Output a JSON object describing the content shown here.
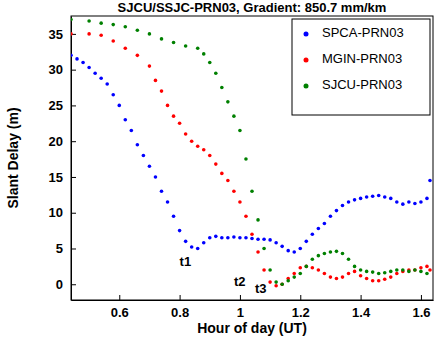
{
  "chart_data": {
    "type": "scatter",
    "title": "SJCU/SSJC-PRN03, Gradient: 850.7 mm/km",
    "x_label": "Hour of day (UT)",
    "y_label": "Slant Delay (m)",
    "xlim": [
      0.44,
      1.64
    ],
    "ylim": [
      -2.2,
      37.5
    ],
    "xticks": [
      0.6,
      0.8,
      1,
      1.2,
      1.4,
      1.6
    ],
    "yticks": [
      0,
      5,
      10,
      15,
      20,
      25,
      30,
      35
    ],
    "grid": false,
    "legend": "upper right",
    "marker": "dot",
    "annotations": [
      {
        "text": "t1",
        "x": 0.8,
        "y": 3
      },
      {
        "text": "t2",
        "x": 0.98,
        "y": 0.3
      },
      {
        "text": "t3",
        "x": 1.05,
        "y": -0.8
      }
    ],
    "series": [
      {
        "name": "SPCA-PRN03",
        "color": "#0000ff",
        "x": [
          0.44,
          0.46,
          0.48,
          0.5,
          0.52,
          0.54,
          0.56,
          0.58,
          0.6,
          0.62,
          0.64,
          0.66,
          0.68,
          0.7,
          0.72,
          0.74,
          0.76,
          0.78,
          0.8,
          0.82,
          0.84,
          0.86,
          0.88,
          0.9,
          0.92,
          0.94,
          0.96,
          0.98,
          1.0,
          1.02,
          1.04,
          1.06,
          1.08,
          1.1,
          1.12,
          1.14,
          1.16,
          1.18,
          1.2,
          1.22,
          1.24,
          1.26,
          1.28,
          1.3,
          1.32,
          1.34,
          1.36,
          1.38,
          1.4,
          1.42,
          1.44,
          1.46,
          1.48,
          1.5,
          1.52,
          1.54,
          1.56,
          1.58,
          1.6,
          1.62,
          1.63
        ],
        "values": [
          32,
          31.5,
          31,
          30.3,
          29.5,
          28.8,
          28,
          26.5,
          25,
          23,
          21.5,
          19.5,
          18,
          16.5,
          15,
          13,
          11.5,
          9.5,
          7.5,
          6,
          5.2,
          5,
          5.8,
          6.5,
          6.7,
          6.5,
          6.5,
          6.6,
          6.5,
          6.5,
          6.4,
          6.3,
          6.3,
          6.2,
          5.8,
          5.3,
          4.7,
          4.5,
          5,
          6,
          7,
          7.8,
          8.5,
          9.5,
          10.3,
          11,
          11.5,
          11.8,
          12,
          12.2,
          12.3,
          12.4,
          12.2,
          12,
          11.5,
          11.2,
          11.5,
          11.3,
          11.5,
          12,
          14.5
        ]
      },
      {
        "name": "MGIN-PRN03",
        "color": "#ff0000",
        "x": [
          0.44,
          0.5,
          0.54,
          0.58,
          0.62,
          0.66,
          0.7,
          0.72,
          0.74,
          0.76,
          0.78,
          0.8,
          0.82,
          0.84,
          0.86,
          0.88,
          0.9,
          0.92,
          0.94,
          0.96,
          0.98,
          1.0,
          1.02,
          1.04,
          1.06,
          1.08,
          1.1,
          1.12,
          1.14,
          1.16,
          1.18,
          1.2,
          1.22,
          1.24,
          1.26,
          1.28,
          1.3,
          1.32,
          1.34,
          1.36,
          1.38,
          1.4,
          1.42,
          1.44,
          1.46,
          1.48,
          1.5,
          1.52,
          1.54,
          1.56,
          1.58,
          1.6,
          1.62,
          1.63
        ],
        "values": [
          35,
          35,
          34.8,
          34,
          33,
          32,
          30.5,
          28.5,
          27,
          25,
          23.5,
          22.5,
          21,
          20,
          19.3,
          18.8,
          18,
          16.8,
          15.5,
          14.5,
          13,
          11.5,
          9.5,
          7,
          4.5,
          2,
          0.3,
          -0.2,
          0,
          0.8,
          1.5,
          2.3,
          2.5,
          2.3,
          2,
          1.5,
          1,
          0.8,
          1,
          1.5,
          1.8,
          1.2,
          0.8,
          0.5,
          0.5,
          0.7,
          1,
          1.5,
          1.8,
          2,
          2,
          2.3,
          2.5,
          2
        ]
      },
      {
        "name": "SJCU-PRN03",
        "color": "#008000",
        "x": [
          0.44,
          0.5,
          0.54,
          0.58,
          0.62,
          0.66,
          0.7,
          0.74,
          0.78,
          0.82,
          0.86,
          0.88,
          0.9,
          0.92,
          0.94,
          0.96,
          0.98,
          1.0,
          1.02,
          1.04,
          1.06,
          1.08,
          1.1,
          1.12,
          1.14,
          1.16,
          1.18,
          1.2,
          1.22,
          1.24,
          1.26,
          1.28,
          1.3,
          1.32,
          1.34,
          1.36,
          1.38,
          1.4,
          1.42,
          1.44,
          1.46,
          1.48,
          1.5,
          1.52,
          1.54,
          1.56,
          1.58,
          1.6,
          1.62
        ],
        "values": [
          37,
          36.8,
          36.5,
          36.3,
          36,
          35.5,
          35,
          34.3,
          33.8,
          33.3,
          33,
          32.2,
          31,
          29.5,
          27.5,
          25.5,
          23.5,
          21.5,
          17.5,
          13,
          9,
          5,
          2,
          0.3,
          0,
          0.5,
          1,
          1.5,
          2.5,
          3.5,
          4,
          4.3,
          4.5,
          4.6,
          4.3,
          3.5,
          2.5,
          2,
          1.8,
          1.7,
          1.5,
          1.6,
          1.8,
          2,
          2,
          1.8,
          2,
          1.8,
          1.5
        ]
      }
    ]
  }
}
